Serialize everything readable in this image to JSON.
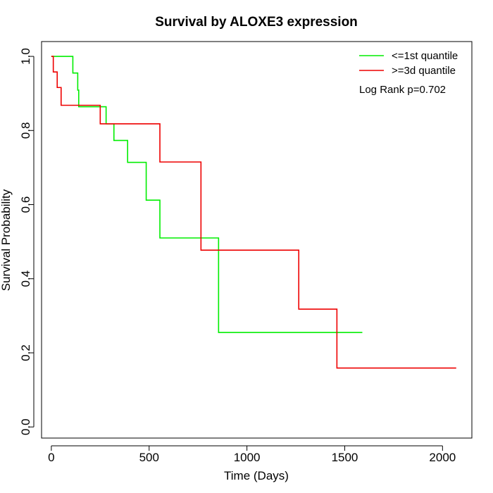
{
  "chart_data": {
    "type": "line",
    "title": "Survival by ALOXE3 expression",
    "xlabel": "Time (Days)",
    "ylabel": "Survival Probability",
    "xlim": [
      -50,
      2150
    ],
    "ylim": [
      -0.03,
      1.04
    ],
    "x_ticks": [
      0,
      500,
      1000,
      1500,
      2000
    ],
    "y_ticks": [
      0.0,
      0.2,
      0.4,
      0.6,
      0.8,
      1.0
    ],
    "x_tick_labels": [
      "0",
      "500",
      "1000",
      "1500",
      "2000"
    ],
    "y_tick_labels": [
      "0.0",
      "0.2",
      "0.4",
      "0.6",
      "0.8",
      "1.0"
    ],
    "grid": false,
    "legend_position": "top-right",
    "annotation": "Log Rank p=0.702",
    "series": [
      {
        "name": "<=1st quantile",
        "color": "#00ee00",
        "step": true,
        "x": [
          0,
          110,
          135,
          140,
          280,
          320,
          390,
          485,
          555,
          855,
          1590
        ],
        "y": [
          1.0,
          0.955,
          0.909,
          0.864,
          0.818,
          0.773,
          0.714,
          0.612,
          0.51,
          0.255,
          0.255
        ]
      },
      {
        "name": ">=3d quantile",
        "color": "#ee0000",
        "step": true,
        "x": [
          0,
          10,
          30,
          50,
          250,
          555,
          765,
          1265,
          1460,
          2070
        ],
        "y": [
          1.0,
          0.958,
          0.916,
          0.868,
          0.818,
          0.715,
          0.477,
          0.318,
          0.159,
          0.159
        ]
      }
    ]
  }
}
